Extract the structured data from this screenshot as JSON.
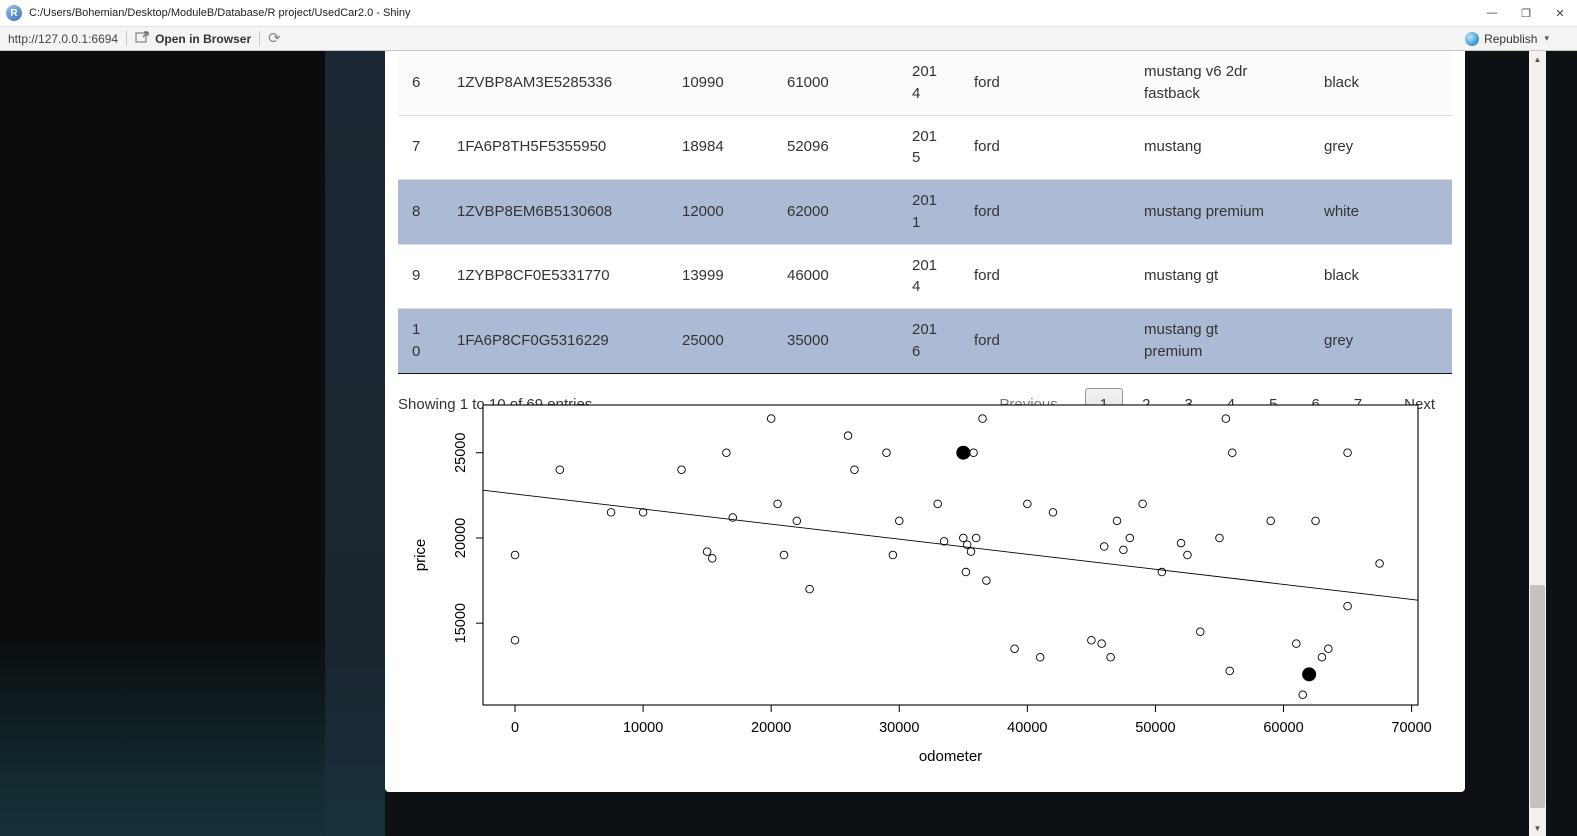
{
  "window": {
    "title": "C:/Users/Bohemian/Desktop/ModuleB/Database/R project/UsedCar2.0 - Shiny"
  },
  "icons": {
    "r_logo": "R",
    "minimize": "—",
    "restore": "❐",
    "close": "✕",
    "refresh": "⟳",
    "republish_caret": "▾",
    "scroll_up": "▲",
    "scroll_down": "▼"
  },
  "toolbar": {
    "url": "http://127.0.0.1:6694",
    "open_in_browser": "Open in Browser",
    "republish": "Republish"
  },
  "table": {
    "rows": [
      {
        "num": "6",
        "vin": "1ZVBP8AM3E5285336",
        "price": "10990",
        "odometer": "61000",
        "year": "2014",
        "make": "ford",
        "model": "mustang v6 2dr fastback",
        "color": "black"
      },
      {
        "num": "7",
        "vin": "1FA6P8TH5F5355950",
        "price": "18984",
        "odometer": "52096",
        "year": "2015",
        "make": "ford",
        "model": "mustang",
        "color": "grey"
      },
      {
        "num": "8",
        "vin": "1ZVBP8EM6B5130608",
        "price": "12000",
        "odometer": "62000",
        "year": "2011",
        "make": "ford",
        "model": "mustang premium",
        "color": "white"
      },
      {
        "num": "9",
        "vin": "1ZYBP8CF0E5331770",
        "price": "13999",
        "odometer": "46000",
        "year": "2014",
        "make": "ford",
        "model": "mustang gt",
        "color": "black"
      },
      {
        "num": "10",
        "vin": "1FA6P8CF0G5316229",
        "price": "25000",
        "odometer": "35000",
        "year": "2016",
        "make": "ford",
        "model": "mustang gt premium",
        "color": "grey"
      }
    ]
  },
  "pagination": {
    "info": "Showing 1 to 10 of 69 entries",
    "previous_label": "Previous",
    "pages": [
      "1",
      "2",
      "3",
      "4",
      "5",
      "6",
      "7"
    ],
    "current_page": "1",
    "next_label": "Next"
  },
  "chart_data": {
    "type": "scatter",
    "xlabel": "odometer",
    "ylabel": "price",
    "x_ticks": [
      0,
      10000,
      20000,
      30000,
      40000,
      50000,
      60000,
      70000
    ],
    "y_ticks": [
      15000,
      20000,
      25000
    ],
    "xlim": [
      -2500,
      70500
    ],
    "ylim": [
      10200,
      27800
    ],
    "grid": false,
    "points": [
      [
        0,
        19000
      ],
      [
        0,
        14000
      ],
      [
        3500,
        24000
      ],
      [
        7500,
        21500
      ],
      [
        10000,
        21500
      ],
      [
        13000,
        24000
      ],
      [
        15000,
        19200
      ],
      [
        15400,
        18800
      ],
      [
        16500,
        25000
      ],
      [
        17000,
        21200
      ],
      [
        20000,
        27000
      ],
      [
        20500,
        22000
      ],
      [
        21000,
        19000
      ],
      [
        22000,
        21000
      ],
      [
        23000,
        17000
      ],
      [
        26000,
        26000
      ],
      [
        26500,
        24000
      ],
      [
        29000,
        25000
      ],
      [
        29500,
        19000
      ],
      [
        30000,
        21000
      ],
      [
        33000,
        22000
      ],
      [
        33500,
        19800
      ],
      [
        35000,
        20000
      ],
      [
        35300,
        19600
      ],
      [
        35600,
        19200
      ],
      [
        35200,
        18000
      ],
      [
        36000,
        20000
      ],
      [
        36500,
        27000
      ],
      [
        36800,
        17500
      ],
      [
        35800,
        25000
      ],
      [
        40000,
        22000
      ],
      [
        39000,
        13500
      ],
      [
        41000,
        13000
      ],
      [
        42000,
        21500
      ],
      [
        45000,
        14000
      ],
      [
        45800,
        13800
      ],
      [
        46000,
        19500
      ],
      [
        46500,
        13000
      ],
      [
        47000,
        21000
      ],
      [
        47500,
        19300
      ],
      [
        48000,
        20000
      ],
      [
        49000,
        22000
      ],
      [
        50500,
        18000
      ],
      [
        52000,
        19700
      ],
      [
        52500,
        19000
      ],
      [
        53500,
        14500
      ],
      [
        55000,
        20000
      ],
      [
        55500,
        27000
      ],
      [
        55800,
        12200
      ],
      [
        56000,
        25000
      ],
      [
        59000,
        21000
      ],
      [
        61000,
        13800
      ],
      [
        61500,
        10800
      ],
      [
        62500,
        21000
      ],
      [
        63000,
        13000
      ],
      [
        63500,
        13500
      ],
      [
        65000,
        25000
      ],
      [
        65000,
        16000
      ],
      [
        67500,
        18500
      ]
    ],
    "highlight_points": [
      [
        35000,
        25000
      ],
      [
        62000,
        12000
      ]
    ],
    "trend_line": {
      "x1": -2500,
      "y1": 22800,
      "x2": 70500,
      "y2": 16350
    }
  }
}
